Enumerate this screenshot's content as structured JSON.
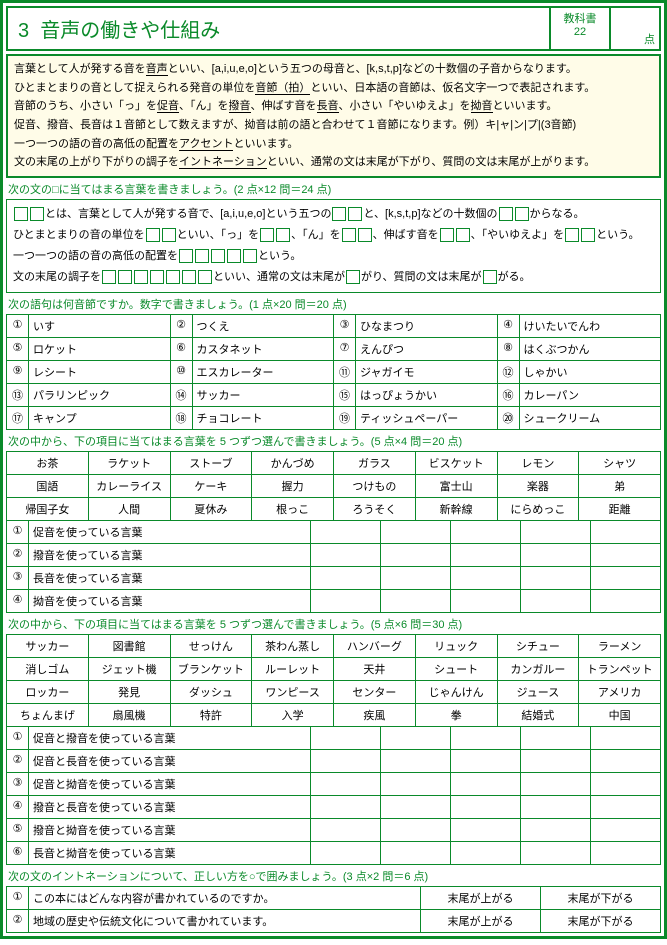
{
  "header": {
    "num": "3",
    "title": "音声の働きや仕組み",
    "book_label": "教科書",
    "page": "22",
    "pts_suffix": "点"
  },
  "intro": {
    "l1a": "言葉として人が発する音を",
    "l1b": "音声",
    "l1c": "といい、[a,i,u,e,o]という五つの母音と、[k,s,t,p]などの十数個の子音からなります。",
    "l2a": "ひとまとまりの音として捉えられる発音の単位を",
    "l2b": "音節（拍）",
    "l2c": "といい、日本語の音節は、仮名文字一つで表記されます。",
    "l3a": "音節のうち、小さい「っ」を",
    "l3b": "促音",
    "l3c": "、「ん」を",
    "l3d": "撥音",
    "l3e": "、伸ばす音を",
    "l3f": "長音",
    "l3g": "、小さい「やいゆえよ」を",
    "l3h": "拗音",
    "l3i": "といいます。",
    "l4a": "促音、撥音、長音は１音節として数えますが、拗音は前の語と合わせて１音節になります。例）キ|ャ|ン|プ|(3音節)",
    "l5a": "一つ一つの語の音の高低の配置を",
    "l5b": "アクセント",
    "l5c": "といいます。",
    "l6a": "文の末尾の上がり下がりの調子を",
    "l6b": "イントネーション",
    "l6c": "といい、通常の文は末尾が下がり、質問の文は末尾が上がります。"
  },
  "s1": {
    "title": "次の文の□に当てはまる言葉を書きましょう。(2 点×12 問＝24 点)",
    "r1a": "とは、言葉として人が発する音で、[a,i,u,e,o]という五つの",
    "r1b": "と、[k,s,t,p]などの十数個の",
    "r1c": "からなる。",
    "r2a": "ひとまとまりの音の単位を",
    "r2b": "といい、「っ」を",
    "r2c": "、「ん」を",
    "r2d": "、伸ばす音を",
    "r2e": "、「やいゆえよ」を",
    "r2f": "という。",
    "r3a": "一つ一つの語の音の高低の配置を",
    "r3b": "という。",
    "r4a": "文の末尾の調子を",
    "r4b": "といい、通常の文は末尾が",
    "r4c": "がり、質問の文は末尾が",
    "r4d": "がる。"
  },
  "s2": {
    "title": "次の語句は何音節ですか。数字で書きましょう。(1 点×20 問＝20 点)",
    "items": [
      "いす",
      "つくえ",
      "ひなまつり",
      "けいたいでんわ",
      "ロケット",
      "カスタネット",
      "えんぴつ",
      "はくぶつかん",
      "レシート",
      "エスカレーター",
      "ジャガイモ",
      "しゃかい",
      "パラリンピック",
      "サッカー",
      "はっぴょうかい",
      "カレーパン",
      "キャンプ",
      "チョコレート",
      "ティッシュペーパー",
      "シュークリーム"
    ],
    "nums": [
      "①",
      "②",
      "③",
      "④",
      "⑤",
      "⑥",
      "⑦",
      "⑧",
      "⑨",
      "⑩",
      "⑪",
      "⑫",
      "⑬",
      "⑭",
      "⑮",
      "⑯",
      "⑰",
      "⑱",
      "⑲",
      "⑳"
    ]
  },
  "s3": {
    "title": "次の中から、下の項目に当てはまる言葉を 5 つずつ選んで書きましょう。(5 点×4 問＝20 点)",
    "words": [
      "お茶",
      "ラケット",
      "ストーブ",
      "かんづめ",
      "ガラス",
      "ビスケット",
      "レモン",
      "シャツ",
      "国語",
      "カレーライス",
      "ケーキ",
      "握力",
      "つけもの",
      "富士山",
      "楽器",
      "弟",
      "帰国子女",
      "人間",
      "夏休み",
      "根っこ",
      "ろうそく",
      "新幹線",
      "にらめっこ",
      "距離"
    ],
    "cats": [
      "促音を使っている言葉",
      "撥音を使っている言葉",
      "長音を使っている言葉",
      "拗音を使っている言葉"
    ],
    "nums": [
      "①",
      "②",
      "③",
      "④"
    ]
  },
  "s4": {
    "title": "次の中から、下の項目に当てはまる言葉を 5 つずつ選んで書きましょう。(5 点×6 問＝30 点)",
    "words": [
      "サッカー",
      "図書館",
      "せっけん",
      "茶わん蒸し",
      "ハンバーグ",
      "リュック",
      "シチュー",
      "ラーメン",
      "消しゴム",
      "ジェット機",
      "ブランケット",
      "ルーレット",
      "天井",
      "シュート",
      "カンガルー",
      "トランペット",
      "ロッカー",
      "発見",
      "ダッシュ",
      "ワンピース",
      "センター",
      "じゃんけん",
      "ジュース",
      "アメリカ",
      "ちょんまげ",
      "扇風機",
      "特許",
      "入学",
      "疾風",
      "拳",
      "結婚式",
      "中国"
    ],
    "cats": [
      "促音と撥音を使っている言葉",
      "促音と長音を使っている言葉",
      "促音と拗音を使っている言葉",
      "撥音と長音を使っている言葉",
      "撥音と拗音を使っている言葉",
      "長音と拗音を使っている言葉"
    ],
    "nums": [
      "①",
      "②",
      "③",
      "④",
      "⑤",
      "⑥"
    ]
  },
  "s5": {
    "title": "次の文のイントネーションについて、正しい方を○で囲みましょう。(3 点×2 問＝6 点)",
    "rows": [
      {
        "n": "①",
        "q": "この本にはどんな内容が書かれているのですか。",
        "a": "末尾が上がる",
        "b": "末尾が下がる"
      },
      {
        "n": "②",
        "q": "地域の歴史や伝統文化について書かれています。",
        "a": "末尾が上がる",
        "b": "末尾が下がる"
      }
    ]
  }
}
